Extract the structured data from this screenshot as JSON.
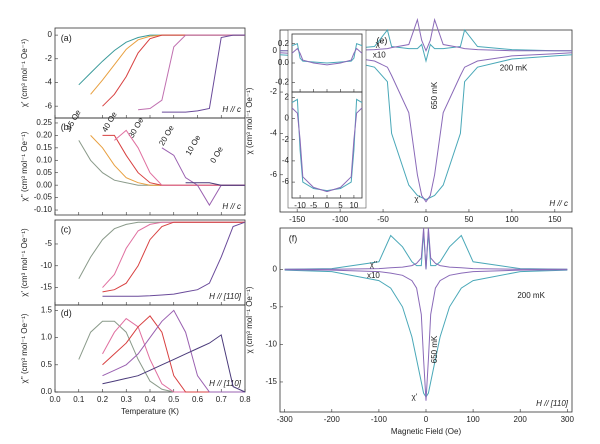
{
  "chart_data": [
    {
      "type": "line",
      "panel_label": "(a)",
      "ylabel": "χ' (cm³ mol⁻¹ Oe⁻¹)",
      "field_note": "H // c",
      "xlim": [
        0,
        0.8
      ],
      "xticks": [
        0,
        0.1,
        0.2,
        0.3,
        0.4,
        0.5,
        0.6,
        0.7,
        0.8
      ],
      "xtick_labels": false,
      "ylim": [
        -7,
        0.6
      ],
      "yticks": [
        0,
        -2,
        -4,
        -6
      ],
      "x": [
        0.1,
        0.15,
        0.2,
        0.25,
        0.3,
        0.35,
        0.4,
        0.45,
        0.5,
        0.55,
        0.6,
        0.65,
        0.7,
        0.75,
        0.8
      ],
      "series": [
        {
          "color": "#3a9a9a",
          "values": [
            -4.2,
            -3.2,
            -2.2,
            -1.3,
            -0.6,
            -0.2,
            0,
            0,
            0,
            0,
            0,
            0,
            0,
            0,
            0
          ]
        },
        {
          "color": "#e8a040",
          "values": [
            null,
            -5,
            -3.8,
            -2.5,
            -1.2,
            -0.4,
            -0.1,
            0,
            0,
            0,
            0,
            0,
            0,
            0,
            0
          ]
        },
        {
          "color": "#d84040",
          "values": [
            null,
            null,
            -6,
            -5,
            -3.5,
            -1.5,
            -0.3,
            0,
            0,
            0,
            0,
            0,
            0,
            0,
            0
          ]
        },
        {
          "color": "#c070b0",
          "values": [
            null,
            null,
            null,
            null,
            null,
            -6.3,
            -6.2,
            -5.5,
            -1,
            0,
            0,
            0,
            0,
            0,
            0
          ]
        },
        {
          "color": "#6a4a9a",
          "values": [
            null,
            null,
            null,
            null,
            null,
            null,
            null,
            -6.5,
            -6.5,
            -6.5,
            -6.4,
            -6.2,
            -0.2,
            0,
            0
          ]
        }
      ]
    },
    {
      "type": "line",
      "panel_label": "(b)",
      "ylabel": "χ'' (cm³ mol⁻¹ Oe⁻¹)",
      "field_note": "H // c",
      "xlim": [
        0,
        0.8
      ],
      "xticks": [
        0,
        0.1,
        0.2,
        0.3,
        0.4,
        0.5,
        0.6,
        0.7,
        0.8
      ],
      "xtick_labels": false,
      "ylim": [
        -0.12,
        0.27
      ],
      "yticks": [
        0.25,
        {
          "value": 0.2,
          "label": "0.20"
        },
        0.15,
        {
          "value": 0.1,
          "label": "0.10"
        },
        0.05,
        {
          "value": 0,
          "label": "0.00"
        },
        -0.05,
        {
          "value": -0.1,
          "label": "-0.10"
        }
      ],
      "x": [
        0.1,
        0.15,
        0.2,
        0.25,
        0.3,
        0.35,
        0.4,
        0.45,
        0.5,
        0.55,
        0.6,
        0.65,
        0.7,
        0.75,
        0.8
      ],
      "series": [
        {
          "name": "45 Oe",
          "color": "#8a9a8a",
          "values": [
            0.18,
            0.1,
            0.05,
            0.02,
            0.01,
            0,
            0,
            0,
            0,
            0,
            0,
            0,
            0,
            0,
            0
          ]
        },
        {
          "name": "40 Oe",
          "color": "#e8a040",
          "values": [
            null,
            0.2,
            0.15,
            0.08,
            0.03,
            0.01,
            0,
            0,
            0,
            0,
            0,
            0,
            0,
            0,
            0
          ]
        },
        {
          "name": "30 Oe",
          "color": "#d84040",
          "values": [
            null,
            null,
            0.2,
            0.2,
            0.12,
            0.05,
            0.01,
            0,
            0,
            0,
            0,
            0,
            0,
            0,
            0
          ]
        },
        {
          "name": "20 Oe",
          "color": "#e070a0",
          "values": [
            null,
            null,
            null,
            0.18,
            0.22,
            0.15,
            0.05,
            0,
            0,
            0,
            0,
            0,
            0,
            0,
            0
          ]
        },
        {
          "name": "10 Oe",
          "color": "#9a60b0",
          "values": [
            null,
            null,
            null,
            null,
            null,
            null,
            null,
            0.15,
            0.12,
            0.03,
            0,
            -0.08,
            0,
            0,
            0
          ]
        },
        {
          "name": "0 Oe",
          "color": "#4a3a7a",
          "values": [
            null,
            null,
            null,
            null,
            null,
            null,
            null,
            null,
            null,
            0.01,
            0.01,
            0.01,
            0,
            0,
            0
          ]
        }
      ]
    },
    {
      "type": "line",
      "panel_label": "(c)",
      "ylabel": "χ' (cm³ mol⁻¹ Oe⁻¹)",
      "field_note": "H // [110]",
      "xlim": [
        0,
        0.8
      ],
      "xticks": [
        0,
        0.1,
        0.2,
        0.3,
        0.4,
        0.5,
        0.6,
        0.7,
        0.8
      ],
      "xtick_labels": false,
      "ylim": [
        -19,
        0.5
      ],
      "yticks": [
        -5,
        -10,
        -15
      ],
      "x": [
        0.1,
        0.15,
        0.2,
        0.25,
        0.3,
        0.35,
        0.4,
        0.45,
        0.5,
        0.55,
        0.6,
        0.65,
        0.7,
        0.75,
        0.8
      ],
      "series": [
        {
          "color": "#8a9a8a",
          "values": [
            -13,
            -8,
            -4,
            -1.5,
            -0.5,
            0,
            0,
            0,
            0,
            0,
            0,
            0,
            0,
            0,
            0
          ]
        },
        {
          "color": "#e070a0",
          "values": [
            null,
            null,
            -15,
            -12,
            -6,
            -2,
            -0.5,
            0,
            0,
            0,
            0,
            0,
            0,
            0,
            0
          ]
        },
        {
          "color": "#d84040",
          "values": [
            null,
            null,
            -16,
            -15.5,
            -14,
            -10,
            -4,
            -1,
            0,
            0,
            0,
            0,
            0,
            0,
            0
          ]
        },
        {
          "color": "#6a4a9a",
          "values": [
            null,
            null,
            -17,
            -17,
            -17,
            -17,
            -16.9,
            -16.7,
            -16.5,
            -16,
            -15.5,
            -14,
            -8,
            -1,
            0
          ]
        }
      ]
    },
    {
      "type": "line",
      "panel_label": "(d)",
      "ylabel": "χ'' (cm³ mol⁻¹ Oe⁻¹)",
      "xlabel": "Temperature (K)",
      "field_note": "H // [110]",
      "xlim": [
        0,
        0.8
      ],
      "xticks": [
        {
          "value": 0,
          "label": "0.0"
        },
        0.1,
        0.2,
        0.3,
        0.4,
        0.5,
        0.6,
        0.7,
        0.8
      ],
      "ylim": [
        0,
        1.6
      ],
      "yticks": [
        1.5,
        {
          "value": 1,
          "label": "1.0"
        },
        0.5,
        {
          "value": 0,
          "label": "0.0"
        }
      ],
      "x": [
        0.1,
        0.15,
        0.2,
        0.25,
        0.3,
        0.35,
        0.4,
        0.45,
        0.5,
        0.55,
        0.6,
        0.65,
        0.7,
        0.75,
        0.8
      ],
      "series": [
        {
          "color": "#8a9a8a",
          "values": [
            0.6,
            1.1,
            1.3,
            1.3,
            1.1,
            0.6,
            0.2,
            0.05,
            0,
            0,
            0,
            0,
            0,
            0,
            0
          ]
        },
        {
          "color": "#e070a0",
          "values": [
            null,
            null,
            0.7,
            1.1,
            1.35,
            1.2,
            0.6,
            0.15,
            0,
            0,
            0,
            0,
            0,
            0,
            0
          ]
        },
        {
          "color": "#d84040",
          "values": [
            null,
            null,
            0.5,
            0.7,
            0.9,
            1.2,
            1.4,
            1.1,
            0.3,
            0,
            0,
            0,
            0,
            0,
            0
          ]
        },
        {
          "color": "#9a60b0",
          "values": [
            null,
            null,
            0.3,
            0.4,
            0.5,
            0.7,
            1,
            1.3,
            1.5,
            1.1,
            0.3,
            0,
            0,
            0,
            0
          ]
        },
        {
          "color": "#4a3a7a",
          "values": [
            null,
            null,
            0.15,
            0.2,
            0.25,
            0.3,
            0.4,
            0.5,
            0.6,
            0.7,
            0.8,
            0.9,
            1.05,
            0.1,
            0
          ]
        }
      ]
    },
    {
      "type": "line",
      "panel_label": "(e)",
      "ylabel": "χ (cm³ mol⁻¹ Oe⁻¹)",
      "field_note": "H // c",
      "annotations": [
        "χ''",
        "x10",
        "200 mK",
        "650 mK",
        "χ'"
      ],
      "xlim": [
        -170,
        170
      ],
      "xticks": [
        -150,
        -100,
        -50,
        0,
        50,
        100,
        150
      ],
      "ylim": [
        -7.8,
        1
      ],
      "yticks": [
        0,
        -2,
        -4,
        -6
      ],
      "x": [
        -170,
        -150,
        -100,
        -60,
        -45,
        -40,
        -20,
        -10,
        -5,
        0,
        5,
        10,
        20,
        40,
        45,
        60,
        100,
        150,
        170
      ],
      "series": [
        {
          "color": "#4aa8b8",
          "values": [
            -0.2,
            -0.25,
            -0.4,
            -0.8,
            -1.5,
            -4,
            -6.5,
            -7,
            -7.1,
            -7.2,
            -7.1,
            -7,
            -6.5,
            -4,
            -1.5,
            -0.8,
            -0.4,
            -0.25,
            -0.2
          ]
        },
        {
          "color": "#8a6ab8",
          "values": [
            -0.1,
            -0.15,
            -0.25,
            -0.5,
            -0.8,
            -1.2,
            -3,
            -6,
            -7,
            -7.3,
            -7,
            -6,
            -3,
            -1.2,
            -0.8,
            -0.5,
            -0.25,
            -0.15,
            -0.1
          ]
        },
        {
          "color": "#4aa8b8",
          "values": [
            0,
            0,
            0.05,
            0.2,
            1,
            0.2,
            0.1,
            0.1,
            0.3,
            -0.5,
            0.3,
            0.1,
            0.1,
            0.2,
            1,
            0.2,
            0.05,
            0,
            0
          ]
        },
        {
          "color": "#8a6ab8",
          "values": [
            0,
            0,
            0,
            0.05,
            0.1,
            0.15,
            0.3,
            1.5,
            0.5,
            0,
            0.5,
            1.5,
            0.3,
            0.15,
            0.1,
            0.05,
            0,
            0,
            0
          ]
        }
      ]
    },
    {
      "type": "line",
      "xlim": [
        -13,
        13
      ],
      "xticks": [
        -10,
        -5,
        0,
        5,
        10
      ],
      "xtick_labels": false,
      "ylim": [
        -0.3,
        0.3
      ],
      "yticks": [
        {
          "value": 0.2,
          "label": "0.2"
        },
        {
          "value": 0,
          "label": "0.0"
        },
        {
          "value": -0.2,
          "label": "-0.2"
        }
      ],
      "x": [
        -13,
        -11,
        -10,
        -9,
        -5,
        0,
        5,
        9,
        10,
        11,
        13
      ],
      "series": [
        {
          "color": "#4aa8b8",
          "values": [
            0.18,
            0.2,
            0.05,
            0.02,
            0.01,
            0,
            0.01,
            0.02,
            0.05,
            0.2,
            0.18
          ]
        },
        {
          "color": "#8a6ab8",
          "values": [
            0.1,
            0.15,
            0.1,
            0.03,
            0,
            -0.02,
            0,
            0.03,
            0.1,
            0.15,
            0.1
          ]
        }
      ]
    },
    {
      "type": "line",
      "xlim": [
        -13,
        13
      ],
      "xticks": [
        -10,
        -5,
        0,
        5,
        10
      ],
      "ylim": [
        -7.5,
        2.5
      ],
      "yticks": [
        2,
        0,
        -2,
        -4,
        -6
      ],
      "x": [
        -13,
        -11,
        -10,
        -9,
        -5,
        0,
        5,
        9,
        10,
        11,
        13
      ],
      "series": [
        {
          "color": "#4aa8b8",
          "values": [
            1.5,
            1.8,
            -3,
            -6,
            -6.6,
            -6.8,
            -6.6,
            -6,
            -3,
            1.8,
            1.5
          ]
        },
        {
          "color": "#8a6ab8",
          "values": [
            1,
            0.5,
            -2,
            -5.5,
            -6.5,
            -6.9,
            -6.5,
            -5.5,
            -2,
            0.5,
            1
          ]
        }
      ]
    },
    {
      "type": "line",
      "panel_label": "(f)",
      "ylabel": "χ (cm³ mol⁻¹ Oe⁻¹)",
      "xlabel": "Magnetic Field (Oe)",
      "field_note": "H // [110]",
      "annotations": [
        "χ''",
        "x10",
        "200 mK",
        "650 mK",
        "χ'"
      ],
      "xlim": [
        -310,
        310
      ],
      "xticks": [
        -300,
        -200,
        -100,
        0,
        100,
        200,
        300
      ],
      "ylim": [
        -19,
        5.5
      ],
      "yticks": [
        0,
        -5,
        -10,
        -15
      ],
      "x": [
        -300,
        -200,
        -100,
        -75,
        -50,
        -30,
        -20,
        -10,
        -5,
        0,
        5,
        10,
        20,
        30,
        50,
        75,
        100,
        200,
        300
      ],
      "series": [
        {
          "color": "#4aa8b8",
          "values": [
            -0.1,
            -0.3,
            -1.5,
            -2.5,
            -5,
            -9,
            -12,
            -15,
            -16.5,
            -17,
            -16.5,
            -15,
            -12,
            -9,
            -5,
            -2.5,
            -1.5,
            -0.3,
            -0.1
          ]
        },
        {
          "color": "#8a6ab8",
          "values": [
            -0.05,
            -0.1,
            -0.3,
            -0.5,
            -0.8,
            -1.5,
            -2.5,
            -6,
            -12,
            -17.5,
            -12,
            -6,
            -2.5,
            -1.5,
            -0.8,
            -0.5,
            -0.3,
            -0.1,
            -0.05
          ]
        },
        {
          "color": "#4aa8b8",
          "values": [
            0,
            0.1,
            1,
            4.5,
            3,
            1,
            0.5,
            0.5,
            5,
            0,
            5,
            0.5,
            0.5,
            1,
            3,
            4.5,
            1,
            0.1,
            0
          ]
        },
        {
          "color": "#8a6ab8",
          "values": [
            0,
            0,
            0.1,
            0.2,
            0.3,
            0.5,
            0.8,
            1.5,
            5.5,
            0,
            5.5,
            1.5,
            0.8,
            0.5,
            0.3,
            0.2,
            0.1,
            0,
            0
          ]
        }
      ]
    }
  ]
}
